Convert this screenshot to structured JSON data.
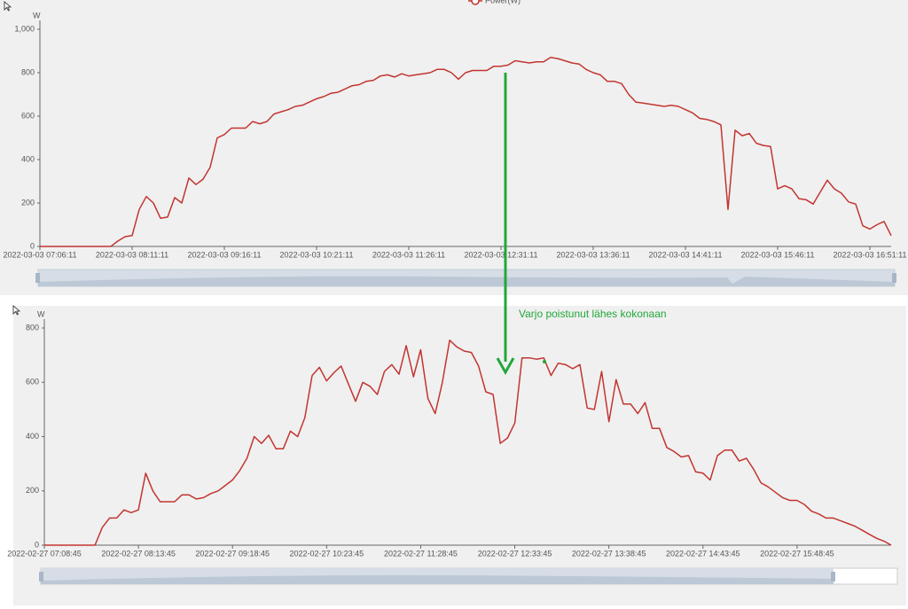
{
  "chart_data": [
    {
      "type": "line",
      "y_label": "W",
      "categories": [
        "2022-03-03 07:06:11",
        null,
        null,
        null,
        null,
        null,
        null,
        null,
        null,
        null,
        null,
        null,
        null,
        "2022-03-03 08:11:11",
        null,
        null,
        null,
        null,
        null,
        null,
        null,
        null,
        null,
        null,
        null,
        null,
        "2022-03-03 09:16:11",
        null,
        null,
        null,
        null,
        null,
        null,
        null,
        null,
        null,
        null,
        null,
        null,
        "2022-03-03 10:21:11",
        null,
        null,
        null,
        null,
        null,
        null,
        null,
        null,
        null,
        null,
        null,
        null,
        "2022-03-03 11:26:11",
        null,
        null,
        null,
        null,
        null,
        null,
        null,
        null,
        null,
        null,
        null,
        null,
        "2022-03-03 12:31:11",
        null,
        null,
        null,
        null,
        null,
        null,
        null,
        null,
        null,
        null,
        null,
        null,
        "2022-03-03 13:36:11",
        null,
        null,
        null,
        null,
        null,
        null,
        null,
        null,
        null,
        null,
        null,
        null,
        "2022-03-03 14:41:11",
        null,
        null,
        null,
        null,
        null,
        null,
        null,
        null,
        null,
        null,
        null,
        null,
        "2022-03-03 15:46:11",
        null,
        null,
        null,
        null,
        null,
        null,
        null,
        null,
        null,
        null,
        null,
        null,
        "2022-03-03 16:51:11",
        null,
        null,
        null
      ],
      "series": [
        {
          "name": "Power(W)",
          "color": "#c23531",
          "values": [
            0,
            0,
            0,
            0,
            0,
            0,
            0,
            0,
            0,
            0,
            0,
            25,
            45,
            50,
            170,
            230,
            200,
            130,
            135,
            225,
            200,
            315,
            285,
            310,
            365,
            500,
            515,
            545,
            545,
            545,
            575,
            565,
            575,
            610,
            620,
            630,
            645,
            650,
            665,
            680,
            690,
            705,
            710,
            725,
            740,
            745,
            760,
            765,
            785,
            790,
            780,
            795,
            785,
            790,
            795,
            800,
            815,
            815,
            800,
            770,
            800,
            810,
            810,
            810,
            830,
            830,
            835,
            855,
            850,
            845,
            850,
            850,
            870,
            865,
            855,
            845,
            840,
            815,
            800,
            790,
            760,
            760,
            750,
            700,
            665,
            660,
            655,
            650,
            645,
            650,
            645,
            630,
            615,
            590,
            585,
            575,
            560,
            170,
            535,
            510,
            520,
            475,
            465,
            460,
            265,
            280,
            265,
            220,
            215,
            195,
            250,
            305,
            265,
            245,
            205,
            195,
            95,
            80,
            100,
            115,
            50
          ]
        }
      ],
      "ylim": [
        0,
        1000
      ],
      "yticks": [
        0,
        200,
        400,
        600,
        800,
        {
          "value": 1000,
          "label": "1,000"
        }
      ],
      "grid": false
    },
    {
      "type": "line",
      "y_label": "W",
      "categories": [
        "2022-02-27 07:08:45",
        null,
        null,
        null,
        null,
        null,
        null,
        null,
        null,
        null,
        null,
        null,
        null,
        "2022-02-27 08:13:45",
        null,
        null,
        null,
        null,
        null,
        null,
        null,
        null,
        null,
        null,
        null,
        null,
        "2022-02-27 09:18:45",
        null,
        null,
        null,
        null,
        null,
        null,
        null,
        null,
        null,
        null,
        null,
        null,
        "2022-02-27 10:23:45",
        null,
        null,
        null,
        null,
        null,
        null,
        null,
        null,
        null,
        null,
        null,
        null,
        "2022-02-27 11:28:45",
        null,
        null,
        null,
        null,
        null,
        null,
        null,
        null,
        null,
        null,
        null,
        null,
        "2022-02-27 12:33:45",
        null,
        null,
        null,
        null,
        null,
        null,
        null,
        null,
        null,
        null,
        null,
        null,
        "2022-02-27 13:38:45",
        null,
        null,
        null,
        null,
        null,
        null,
        null,
        null,
        null,
        null,
        null,
        null,
        "2022-02-27 14:43:45",
        null,
        null,
        null,
        null,
        null,
        null,
        null,
        null,
        null,
        null,
        null,
        null,
        "2022-02-27 15:48:45",
        null,
        null,
        null,
        null,
        null,
        null,
        null,
        null,
        null,
        null,
        null,
        null,
        null
      ],
      "color": "#c23531",
      "values": [
        0,
        0,
        0,
        0,
        0,
        0,
        0,
        0,
        65,
        100,
        100,
        130,
        120,
        130,
        265,
        200,
        160,
        160,
        160,
        185,
        185,
        170,
        175,
        190,
        200,
        220,
        240,
        275,
        320,
        400,
        375,
        405,
        355,
        355,
        420,
        400,
        470,
        625,
        655,
        605,
        635,
        660,
        595,
        530,
        600,
        585,
        555,
        640,
        665,
        630,
        735,
        620,
        720,
        540,
        485,
        600,
        755,
        730,
        715,
        710,
        660,
        565,
        555,
        375,
        395,
        450,
        690,
        690,
        685,
        690,
        625,
        670,
        665,
        650,
        665,
        505,
        500,
        640,
        455,
        610,
        520,
        520,
        485,
        525,
        430,
        430,
        360,
        345,
        325,
        330,
        270,
        265,
        240,
        330,
        350,
        350,
        310,
        320,
        280,
        230,
        215,
        195,
        175,
        165,
        165,
        150,
        125,
        115,
        100,
        100,
        90,
        80,
        70,
        55,
        40,
        25,
        15,
        0
      ],
      "ylim": [
        0,
        800
      ],
      "yticks": [
        0,
        200,
        400,
        600,
        800
      ],
      "grid": false
    }
  ],
  "annotation": "Varjo poistunut lähes kokonaan"
}
